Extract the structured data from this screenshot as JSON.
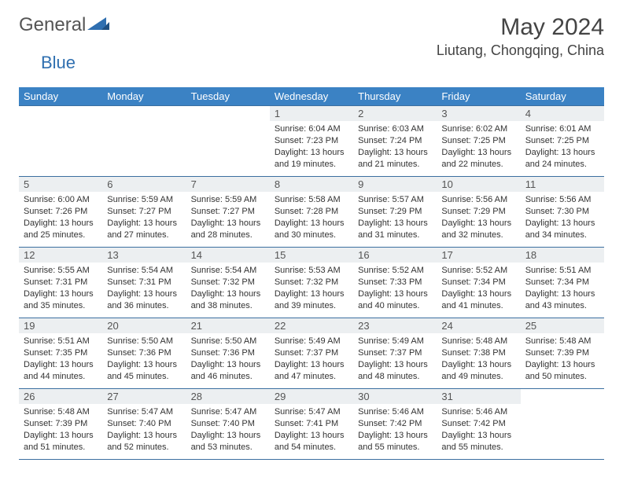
{
  "brand": {
    "name_a": "General",
    "name_b": "Blue"
  },
  "title": "May 2024",
  "location": "Liutang, Chongqing, China",
  "colors": {
    "header_bg": "#3b82c4",
    "header_text": "#ffffff",
    "daynum_bg": "#eceff1",
    "border": "#3b6fa0",
    "logo_blue": "#2f6fb0"
  },
  "weekdays": [
    "Sunday",
    "Monday",
    "Tuesday",
    "Wednesday",
    "Thursday",
    "Friday",
    "Saturday"
  ],
  "weeks": [
    [
      {},
      {},
      {},
      {
        "n": "1",
        "sr": "6:04 AM",
        "ss": "7:23 PM",
        "dl": "13 hours and 19 minutes."
      },
      {
        "n": "2",
        "sr": "6:03 AM",
        "ss": "7:24 PM",
        "dl": "13 hours and 21 minutes."
      },
      {
        "n": "3",
        "sr": "6:02 AM",
        "ss": "7:25 PM",
        "dl": "13 hours and 22 minutes."
      },
      {
        "n": "4",
        "sr": "6:01 AM",
        "ss": "7:25 PM",
        "dl": "13 hours and 24 minutes."
      }
    ],
    [
      {
        "n": "5",
        "sr": "6:00 AM",
        "ss": "7:26 PM",
        "dl": "13 hours and 25 minutes."
      },
      {
        "n": "6",
        "sr": "5:59 AM",
        "ss": "7:27 PM",
        "dl": "13 hours and 27 minutes."
      },
      {
        "n": "7",
        "sr": "5:59 AM",
        "ss": "7:27 PM",
        "dl": "13 hours and 28 minutes."
      },
      {
        "n": "8",
        "sr": "5:58 AM",
        "ss": "7:28 PM",
        "dl": "13 hours and 30 minutes."
      },
      {
        "n": "9",
        "sr": "5:57 AM",
        "ss": "7:29 PM",
        "dl": "13 hours and 31 minutes."
      },
      {
        "n": "10",
        "sr": "5:56 AM",
        "ss": "7:29 PM",
        "dl": "13 hours and 32 minutes."
      },
      {
        "n": "11",
        "sr": "5:56 AM",
        "ss": "7:30 PM",
        "dl": "13 hours and 34 minutes."
      }
    ],
    [
      {
        "n": "12",
        "sr": "5:55 AM",
        "ss": "7:31 PM",
        "dl": "13 hours and 35 minutes."
      },
      {
        "n": "13",
        "sr": "5:54 AM",
        "ss": "7:31 PM",
        "dl": "13 hours and 36 minutes."
      },
      {
        "n": "14",
        "sr": "5:54 AM",
        "ss": "7:32 PM",
        "dl": "13 hours and 38 minutes."
      },
      {
        "n": "15",
        "sr": "5:53 AM",
        "ss": "7:32 PM",
        "dl": "13 hours and 39 minutes."
      },
      {
        "n": "16",
        "sr": "5:52 AM",
        "ss": "7:33 PM",
        "dl": "13 hours and 40 minutes."
      },
      {
        "n": "17",
        "sr": "5:52 AM",
        "ss": "7:34 PM",
        "dl": "13 hours and 41 minutes."
      },
      {
        "n": "18",
        "sr": "5:51 AM",
        "ss": "7:34 PM",
        "dl": "13 hours and 43 minutes."
      }
    ],
    [
      {
        "n": "19",
        "sr": "5:51 AM",
        "ss": "7:35 PM",
        "dl": "13 hours and 44 minutes."
      },
      {
        "n": "20",
        "sr": "5:50 AM",
        "ss": "7:36 PM",
        "dl": "13 hours and 45 minutes."
      },
      {
        "n": "21",
        "sr": "5:50 AM",
        "ss": "7:36 PM",
        "dl": "13 hours and 46 minutes."
      },
      {
        "n": "22",
        "sr": "5:49 AM",
        "ss": "7:37 PM",
        "dl": "13 hours and 47 minutes."
      },
      {
        "n": "23",
        "sr": "5:49 AM",
        "ss": "7:37 PM",
        "dl": "13 hours and 48 minutes."
      },
      {
        "n": "24",
        "sr": "5:48 AM",
        "ss": "7:38 PM",
        "dl": "13 hours and 49 minutes."
      },
      {
        "n": "25",
        "sr": "5:48 AM",
        "ss": "7:39 PM",
        "dl": "13 hours and 50 minutes."
      }
    ],
    [
      {
        "n": "26",
        "sr": "5:48 AM",
        "ss": "7:39 PM",
        "dl": "13 hours and 51 minutes."
      },
      {
        "n": "27",
        "sr": "5:47 AM",
        "ss": "7:40 PM",
        "dl": "13 hours and 52 minutes."
      },
      {
        "n": "28",
        "sr": "5:47 AM",
        "ss": "7:40 PM",
        "dl": "13 hours and 53 minutes."
      },
      {
        "n": "29",
        "sr": "5:47 AM",
        "ss": "7:41 PM",
        "dl": "13 hours and 54 minutes."
      },
      {
        "n": "30",
        "sr": "5:46 AM",
        "ss": "7:42 PM",
        "dl": "13 hours and 55 minutes."
      },
      {
        "n": "31",
        "sr": "5:46 AM",
        "ss": "7:42 PM",
        "dl": "13 hours and 55 minutes."
      },
      {}
    ]
  ],
  "labels": {
    "sunrise": "Sunrise: ",
    "sunset": "Sunset: ",
    "daylight": "Daylight: "
  }
}
